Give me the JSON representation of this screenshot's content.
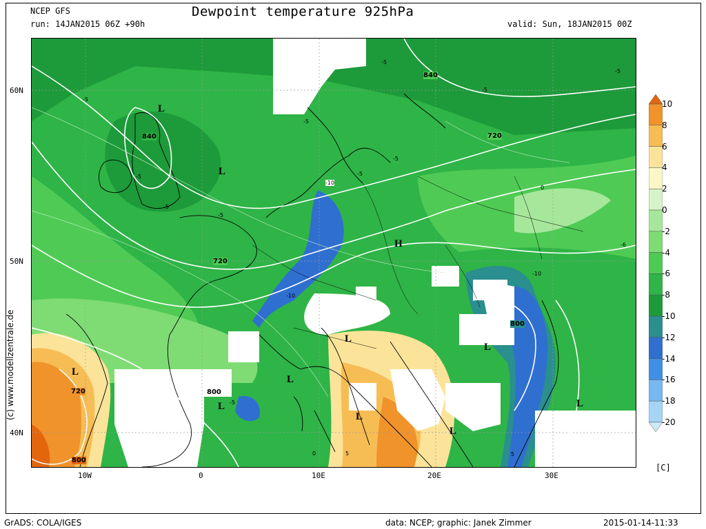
{
  "header": {
    "model": "NCEP GFS",
    "run": "run: 14JAN2015 06Z +90h",
    "title": "Dewpoint temperature 925hPa",
    "valid": "valid: Sun, 18JAN2015 00Z"
  },
  "axes": {
    "lat_labels": [
      "60N",
      "50N",
      "40N"
    ],
    "lon_labels": [
      "10W",
      "0",
      "10E",
      "20E",
      "30E"
    ]
  },
  "watermark": "(c) www.modellzentrale.de",
  "colorbar": {
    "unit": "[C]",
    "labels": [
      "10",
      "8",
      "6",
      "4",
      "2",
      "0",
      "-2",
      "-4",
      "-6",
      "-8",
      "-10",
      "-12",
      "-14",
      "-16",
      "-18",
      "-20"
    ],
    "colors": [
      "#e3660f",
      "#f0932a",
      "#f7bd55",
      "#fbe49a",
      "#fdf6c8",
      "#d7f4c8",
      "#a7e79b",
      "#7fdc74",
      "#4fcb55",
      "#2fb447",
      "#1d9a3a",
      "#2a8f8e",
      "#2f6fd0",
      "#3f8fe6",
      "#78b8f0",
      "#a6d4f5",
      "#cfe8fa"
    ]
  },
  "map_labels": {
    "pressure": [
      "L",
      "L",
      "L",
      "L",
      "L",
      "L",
      "L",
      "L",
      "L",
      "L",
      "H"
    ],
    "isohypse": [
      "840",
      "840",
      "720",
      "720",
      "800",
      "800",
      "720",
      "800"
    ],
    "dewpoint": [
      "-5",
      "-5",
      "-5",
      "-5",
      "-5",
      "-5",
      "-5",
      "-5",
      "-5",
      "-5",
      "-5",
      "-6",
      "-10",
      "-10",
      "-10",
      "0",
      "0",
      "5",
      "5"
    ]
  },
  "footer": {
    "left": "GrADS: COLA/IGES",
    "data": "data: NCEP; graphic: Janek Zimmer",
    "timestamp": "2015-01-14-11:33"
  }
}
